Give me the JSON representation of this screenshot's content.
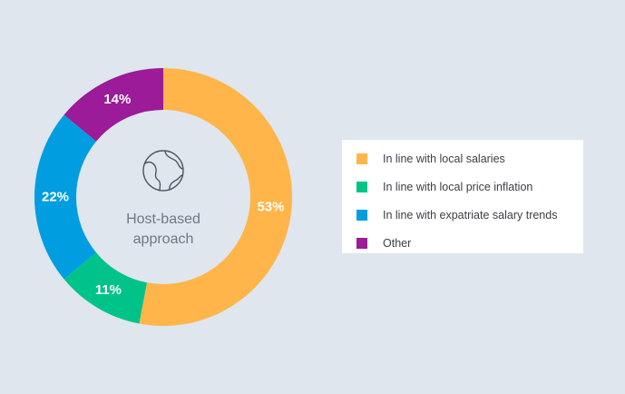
{
  "colors": {
    "background": "#dfe6ed",
    "legend_bg": "#ffffff"
  },
  "center": {
    "icon": "globe-icon",
    "line1": "Host-based",
    "line2": "approach"
  },
  "chart_data": {
    "type": "pie",
    "donut": true,
    "categories": [
      "In line with local salaries",
      "In line with local price inflation",
      "In line with expatriate salary trends",
      "Other"
    ],
    "values": [
      53,
      11,
      22,
      14
    ],
    "labels": [
      "53%",
      "11%",
      "22%",
      "14%"
    ],
    "colors": [
      "#ffb54a",
      "#00c389",
      "#009ee0",
      "#9b1b99"
    ],
    "legend_position": "right",
    "start": "top",
    "direction": "clockwise"
  }
}
